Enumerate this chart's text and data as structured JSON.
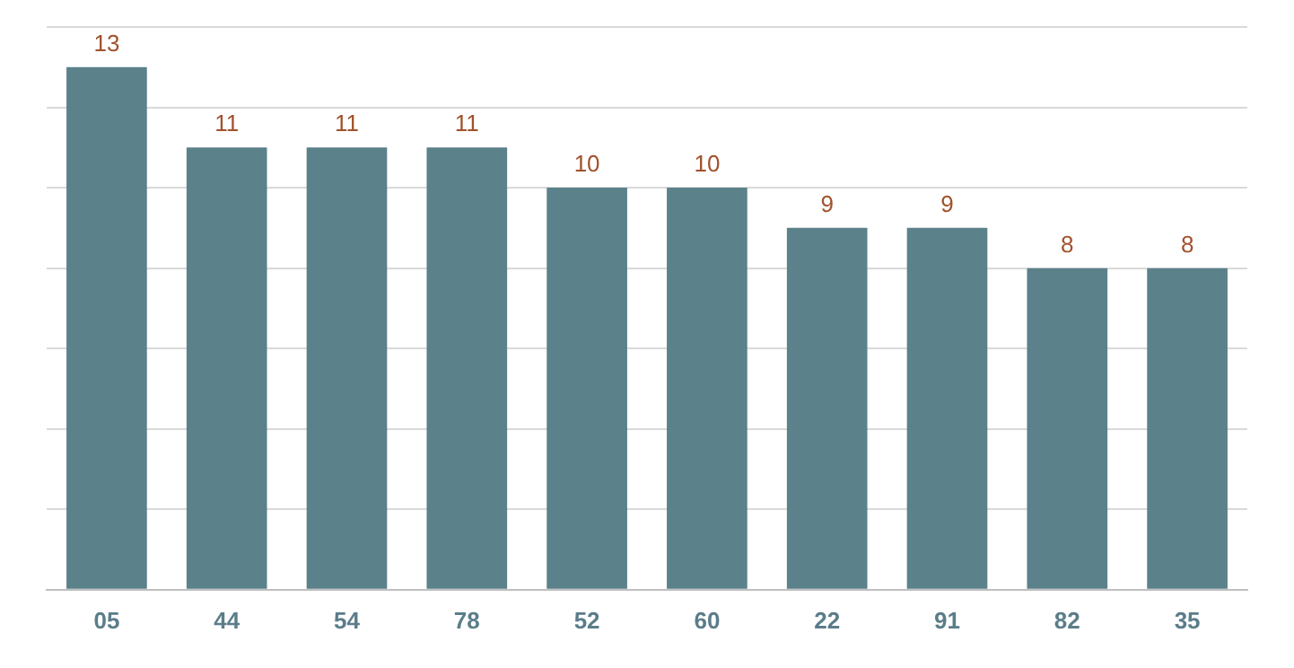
{
  "chart_data": {
    "type": "bar",
    "categories": [
      "05",
      "44",
      "54",
      "78",
      "52",
      "60",
      "22",
      "91",
      "82",
      "35"
    ],
    "values": [
      13,
      11,
      11,
      11,
      10,
      10,
      9,
      9,
      8,
      8
    ],
    "color": "#5b818a",
    "ylim": [
      0,
      14
    ],
    "yticks": [
      0,
      2,
      4,
      6,
      8,
      10,
      12,
      14
    ],
    "grid": "y",
    "tick_labels": "x",
    "data_labels": true,
    "legend": false
  }
}
